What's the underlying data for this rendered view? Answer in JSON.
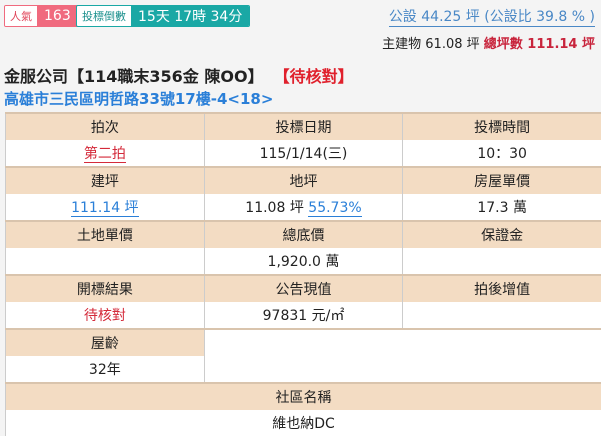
{
  "popularity": {
    "label": "人氣",
    "value": "163"
  },
  "countdown": {
    "label": "投標倒數",
    "value": "15天 17時 34分"
  },
  "public_area": "公設 44.25 坪 (公設比 39.8 % )",
  "main_building": {
    "label": "主建物 61.08 坪",
    "total": "總坪數 111.14 坪"
  },
  "title": {
    "text": "金服公司【114職末356金 陳OO】",
    "status": "【待核對】"
  },
  "address": "高雄市三民區明哲路33號17樓-4<18>",
  "table": {
    "round": {
      "label": "拍次",
      "value": "第二拍"
    },
    "bid_date": {
      "label": "投標日期",
      "value": "115/1/14(三)"
    },
    "bid_time": {
      "label": "投標時間",
      "value": "10：30"
    },
    "building_area": {
      "label": "建坪",
      "value": "111.14 坪"
    },
    "land_area": {
      "label": "地坪",
      "value": "11.08 坪",
      "ratio": "55.73%"
    },
    "house_unit_price": {
      "label": "房屋單價",
      "value": "17.3 萬"
    },
    "land_unit_price": {
      "label": "土地單價",
      "value": ""
    },
    "reserve_price": {
      "label": "總底價",
      "value": "1,920.0 萬"
    },
    "deposit": {
      "label": "保證金",
      "value": ""
    },
    "result": {
      "label": "開標結果",
      "value": "待核對"
    },
    "announced_value": {
      "label": "公告現值",
      "value": "97831 元/㎡"
    },
    "post_auction_gain": {
      "label": "拍後增值",
      "value": ""
    },
    "age": {
      "label": "屋齡",
      "value": "32年"
    },
    "community": {
      "label": "社區名稱",
      "value": "維也納DC"
    }
  }
}
